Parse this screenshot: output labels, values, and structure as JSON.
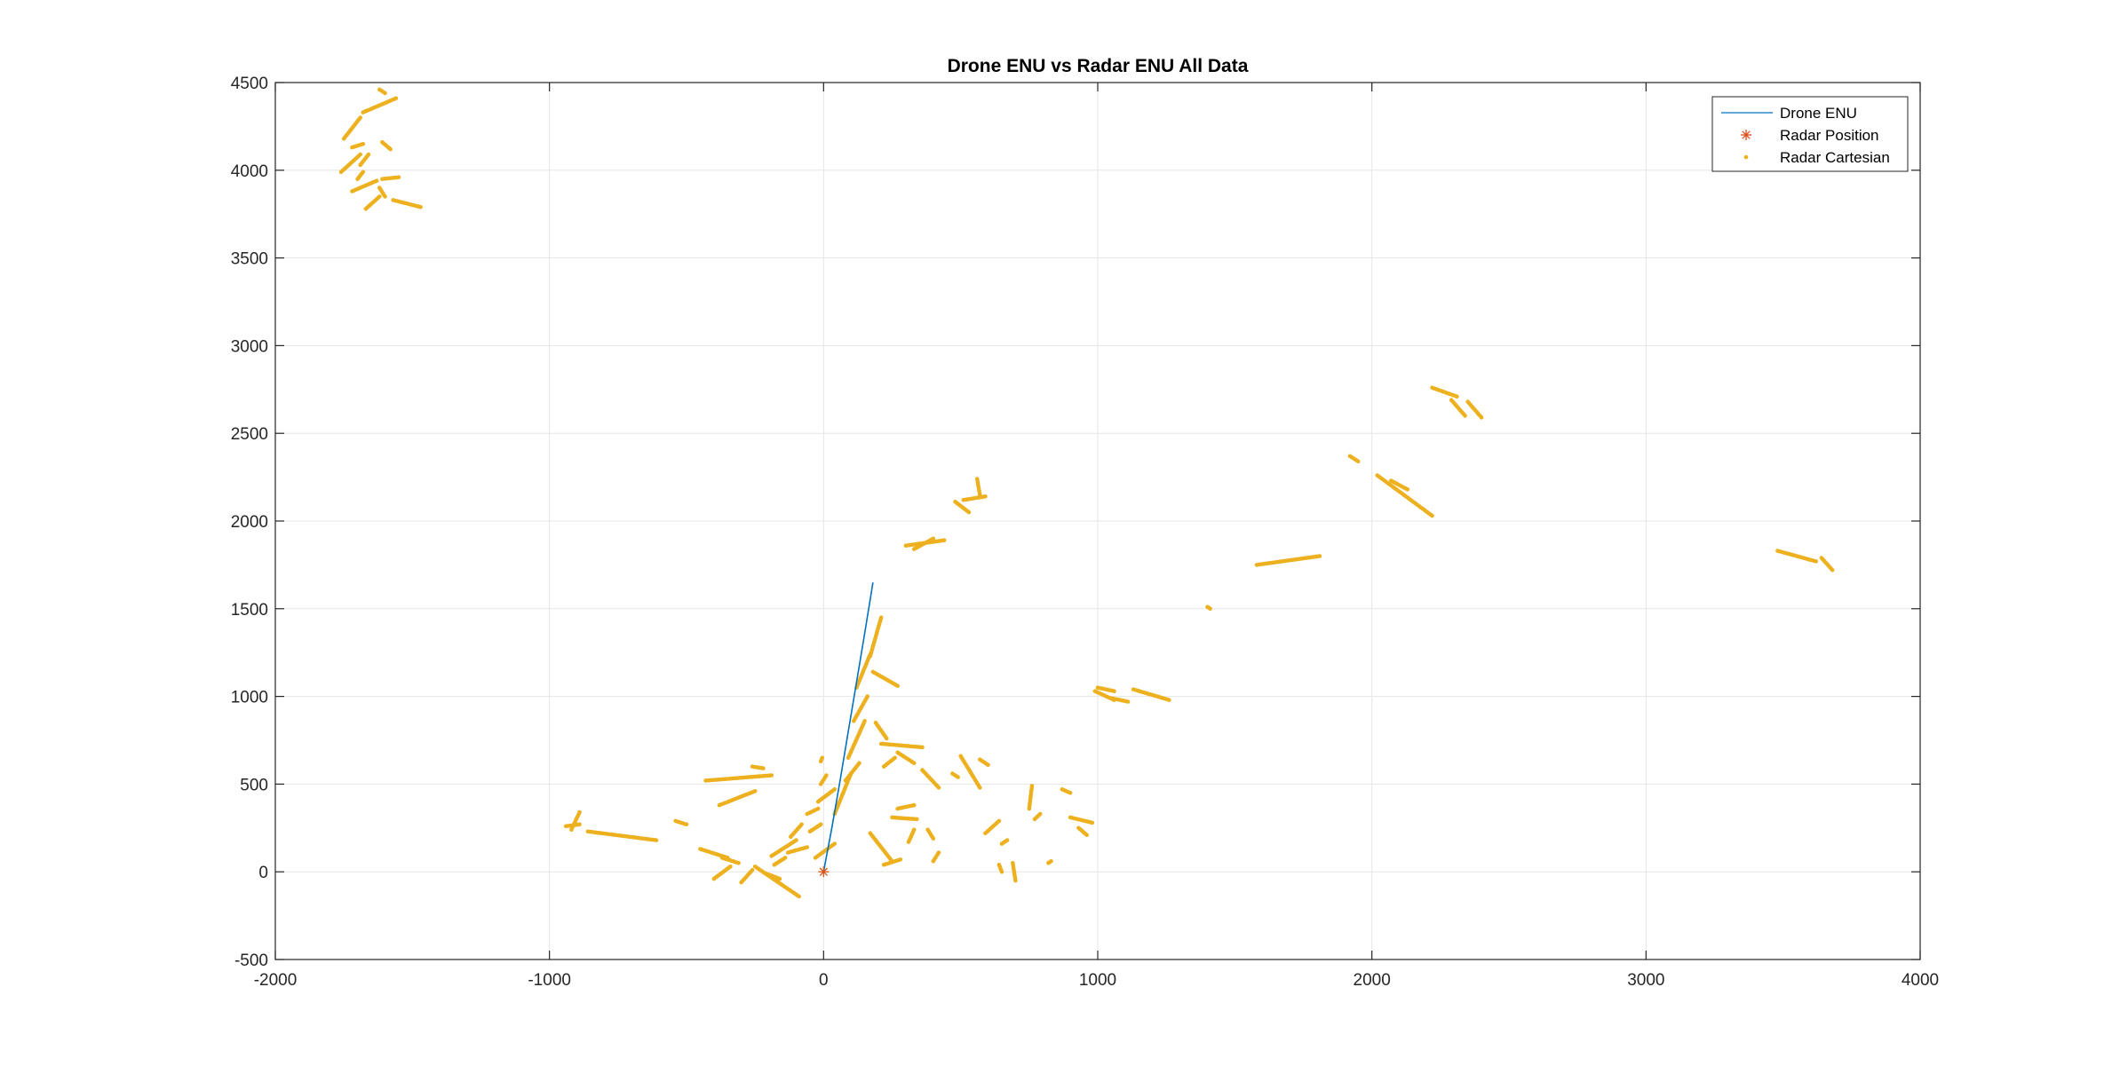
{
  "chart_data": {
    "type": "scatter",
    "title": "Drone ENU vs Radar ENU All Data",
    "xlabel": "",
    "ylabel": "",
    "xlim": [
      -2000,
      4000
    ],
    "ylim": [
      -500,
      4500
    ],
    "xticks": [
      -2000,
      -1000,
      0,
      1000,
      2000,
      3000,
      4000
    ],
    "yticks": [
      -500,
      0,
      500,
      1000,
      1500,
      2000,
      2500,
      3000,
      3500,
      4000,
      4500
    ],
    "xtick_labels": [
      "-2000",
      "-1000",
      "0",
      "1000",
      "2000",
      "3000",
      "4000"
    ],
    "ytick_labels": [
      "-500",
      "0",
      "500",
      "1000",
      "1500",
      "2000",
      "2500",
      "3000",
      "3500",
      "4000",
      "4500"
    ],
    "grid": true,
    "legend_position": "top-right",
    "colors": {
      "drone": "#0072BD",
      "radar_position": "#D95319",
      "radar_cartesian": "#EDB120",
      "grid": "#e6e6e6",
      "axes": "#262626"
    },
    "series": [
      {
        "name": "Drone ENU",
        "style": "line",
        "x": [
          0,
          30,
          60,
          90,
          120,
          150,
          180
        ],
        "y": [
          0,
          250,
          520,
          800,
          1080,
          1360,
          1650
        ]
      },
      {
        "name": "Radar Position",
        "style": "asterisk",
        "x": [
          0
        ],
        "y": [
          0
        ]
      },
      {
        "name": "Radar Cartesian",
        "style": "dots",
        "segments": [
          [
            [
              -1760,
              3990
            ],
            [
              -1690,
              4090
            ]
          ],
          [
            [
              -1680,
              4330
            ],
            [
              -1560,
              4410
            ]
          ],
          [
            [
              -1750,
              4180
            ],
            [
              -1690,
              4300
            ]
          ],
          [
            [
              -1620,
              4460
            ],
            [
              -1600,
              4440
            ]
          ],
          [
            [
              -1610,
              4160
            ],
            [
              -1580,
              4120
            ]
          ],
          [
            [
              -1720,
              4130
            ],
            [
              -1680,
              4150
            ]
          ],
          [
            [
              -1690,
              4030
            ],
            [
              -1660,
              4090
            ]
          ],
          [
            [
              -1700,
              3950
            ],
            [
              -1680,
              3990
            ]
          ],
          [
            [
              -1720,
              3880
            ],
            [
              -1630,
              3940
            ]
          ],
          [
            [
              -1670,
              3780
            ],
            [
              -1620,
              3850
            ]
          ],
          [
            [
              -1610,
              3950
            ],
            [
              -1550,
              3960
            ]
          ],
          [
            [
              -1620,
              3900
            ],
            [
              -1600,
              3850
            ]
          ],
          [
            [
              -1570,
              3830
            ],
            [
              -1470,
              3790
            ]
          ],
          [
            [
              -940,
              260
            ],
            [
              -890,
              270
            ]
          ],
          [
            [
              -920,
              240
            ],
            [
              -890,
              340
            ]
          ],
          [
            [
              -860,
              230
            ],
            [
              -610,
              180
            ]
          ],
          [
            [
              -540,
              290
            ],
            [
              -500,
              270
            ]
          ],
          [
            [
              -430,
              520
            ],
            [
              -190,
              550
            ]
          ],
          [
            [
              -380,
              380
            ],
            [
              -250,
              460
            ]
          ],
          [
            [
              -260,
              600
            ],
            [
              -220,
              590
            ]
          ],
          [
            [
              -450,
              130
            ],
            [
              -350,
              80
            ]
          ],
          [
            [
              -370,
              80
            ],
            [
              -310,
              50
            ]
          ],
          [
            [
              -400,
              -40
            ],
            [
              -340,
              30
            ]
          ],
          [
            [
              -300,
              -60
            ],
            [
              -260,
              10
            ]
          ],
          [
            [
              -250,
              30
            ],
            [
              -90,
              -140
            ]
          ],
          [
            [
              -210,
              -10
            ],
            [
              -160,
              -40
            ]
          ],
          [
            [
              -190,
              90
            ],
            [
              -100,
              180
            ]
          ],
          [
            [
              -180,
              40
            ],
            [
              -140,
              80
            ]
          ],
          [
            [
              -130,
              110
            ],
            [
              -60,
              140
            ]
          ],
          [
            [
              -120,
              200
            ],
            [
              -80,
              270
            ]
          ],
          [
            [
              -60,
              330
            ],
            [
              -20,
              360
            ]
          ],
          [
            [
              -50,
              230
            ],
            [
              -10,
              270
            ]
          ],
          [
            [
              -30,
              80
            ],
            [
              40,
              160
            ]
          ],
          [
            [
              -20,
              400
            ],
            [
              40,
              470
            ]
          ],
          [
            [
              -10,
              500
            ],
            [
              10,
              550
            ]
          ],
          [
            [
              -10,
              630
            ],
            [
              -5,
              650
            ]
          ],
          [
            [
              40,
              330
            ],
            [
              100,
              560
            ]
          ],
          [
            [
              80,
              520
            ],
            [
              130,
              620
            ]
          ],
          [
            [
              90,
              650
            ],
            [
              150,
              860
            ]
          ],
          [
            [
              110,
              860
            ],
            [
              160,
              1000
            ]
          ],
          [
            [
              120,
              1050
            ],
            [
              170,
              1240
            ]
          ],
          [
            [
              170,
              1230
            ],
            [
              210,
              1450
            ]
          ],
          [
            [
              180,
              1140
            ],
            [
              270,
              1060
            ]
          ],
          [
            [
              190,
              850
            ],
            [
              230,
              760
            ]
          ],
          [
            [
              210,
              730
            ],
            [
              360,
              710
            ]
          ],
          [
            [
              220,
              600
            ],
            [
              260,
              650
            ]
          ],
          [
            [
              270,
              680
            ],
            [
              330,
              620
            ]
          ],
          [
            [
              360,
              580
            ],
            [
              420,
              480
            ]
          ],
          [
            [
              170,
              220
            ],
            [
              250,
              60
            ]
          ],
          [
            [
              220,
              40
            ],
            [
              280,
              70
            ]
          ],
          [
            [
              250,
              310
            ],
            [
              340,
              300
            ]
          ],
          [
            [
              270,
              360
            ],
            [
              330,
              380
            ]
          ],
          [
            [
              310,
              170
            ],
            [
              330,
              240
            ]
          ],
          [
            [
              380,
              240
            ],
            [
              400,
              190
            ]
          ],
          [
            [
              400,
              60
            ],
            [
              420,
              110
            ]
          ],
          [
            [
              470,
              560
            ],
            [
              490,
              540
            ]
          ],
          [
            [
              500,
              660
            ],
            [
              570,
              480
            ]
          ],
          [
            [
              570,
              640
            ],
            [
              600,
              610
            ]
          ],
          [
            [
              590,
              220
            ],
            [
              640,
              290
            ]
          ],
          [
            [
              650,
              160
            ],
            [
              670,
              180
            ]
          ],
          [
            [
              640,
              40
            ],
            [
              650,
              0
            ]
          ],
          [
            [
              690,
              50
            ],
            [
              700,
              -50
            ]
          ],
          [
            [
              750,
              360
            ],
            [
              760,
              490
            ]
          ],
          [
            [
              770,
              300
            ],
            [
              790,
              330
            ]
          ],
          [
            [
              820,
              50
            ],
            [
              830,
              60
            ]
          ],
          [
            [
              870,
              470
            ],
            [
              900,
              450
            ]
          ],
          [
            [
              900,
              310
            ],
            [
              980,
              280
            ]
          ],
          [
            [
              930,
              250
            ],
            [
              960,
              210
            ]
          ],
          [
            [
              300,
              1860
            ],
            [
              440,
              1890
            ]
          ],
          [
            [
              330,
              1840
            ],
            [
              400,
              1900
            ]
          ],
          [
            [
              480,
              2110
            ],
            [
              530,
              2050
            ]
          ],
          [
            [
              510,
              2120
            ],
            [
              590,
              2140
            ]
          ],
          [
            [
              560,
              2240
            ],
            [
              570,
              2150
            ]
          ],
          [
            [
              990,
              1030
            ],
            [
              1060,
              980
            ]
          ],
          [
            [
              1000,
              1050
            ],
            [
              1060,
              1030
            ]
          ],
          [
            [
              1050,
              990
            ],
            [
              1110,
              970
            ]
          ],
          [
            [
              1130,
              1040
            ],
            [
              1260,
              980
            ]
          ],
          [
            [
              1400,
              1510
            ],
            [
              1410,
              1500
            ]
          ],
          [
            [
              1580,
              1750
            ],
            [
              1810,
              1800
            ]
          ],
          [
            [
              1920,
              2370
            ],
            [
              1950,
              2340
            ]
          ],
          [
            [
              2020,
              2260
            ],
            [
              2220,
              2030
            ]
          ],
          [
            [
              2070,
              2230
            ],
            [
              2130,
              2180
            ]
          ],
          [
            [
              2220,
              2760
            ],
            [
              2310,
              2710
            ]
          ],
          [
            [
              2290,
              2690
            ],
            [
              2340,
              2600
            ]
          ],
          [
            [
              2350,
              2680
            ],
            [
              2400,
              2590
            ]
          ],
          [
            [
              3480,
              1830
            ],
            [
              3620,
              1770
            ]
          ],
          [
            [
              3640,
              1790
            ],
            [
              3680,
              1720
            ]
          ]
        ]
      }
    ],
    "legend": [
      {
        "label": "Drone ENU",
        "marker": "line"
      },
      {
        "label": "Radar Position",
        "marker": "asterisk"
      },
      {
        "label": "Radar Cartesian",
        "marker": "dot"
      }
    ]
  }
}
